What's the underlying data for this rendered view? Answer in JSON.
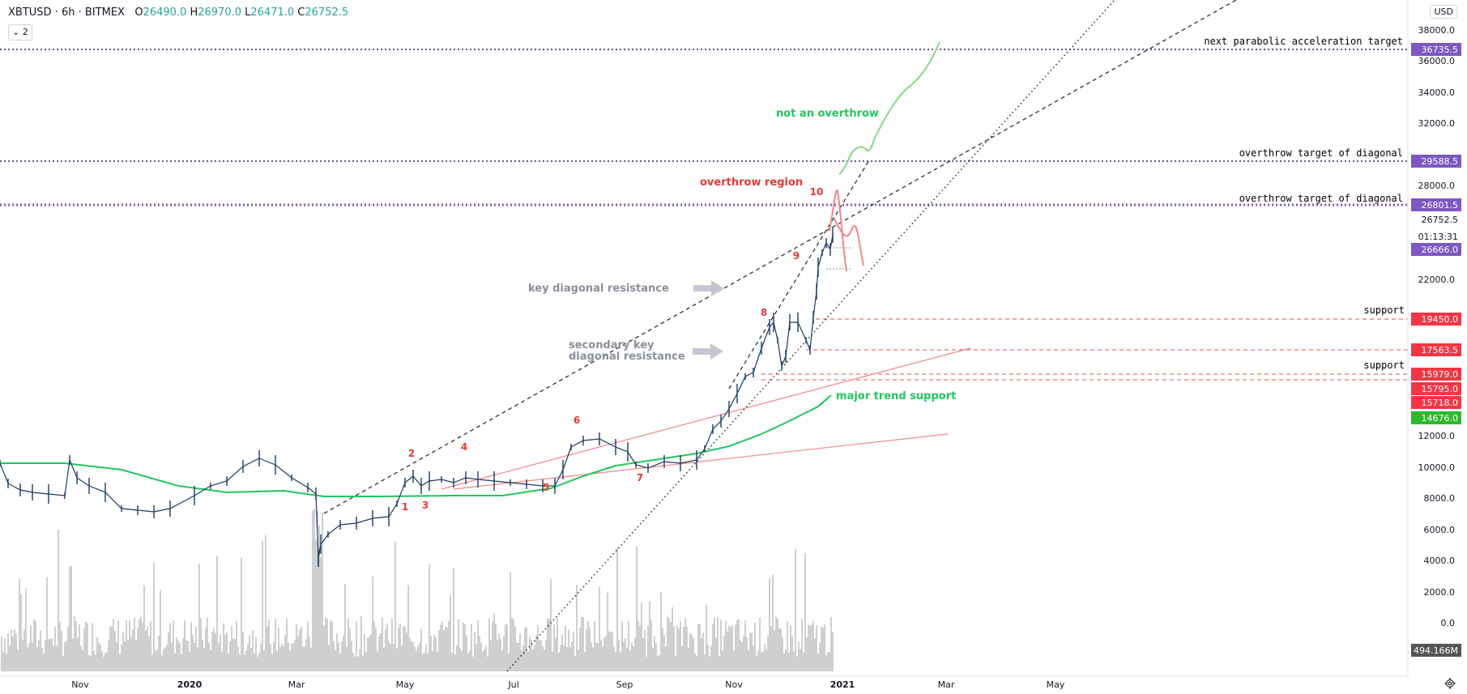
{
  "header": {
    "symbol": "XBTUSD",
    "interval": "6h",
    "exchange": "BITMEX",
    "open_label": "O",
    "open": "26490.0",
    "high_label": "H",
    "high": "26970.0",
    "low_label": "L",
    "low": "26471.0",
    "close_label": "C",
    "close": "26752.5",
    "indicator_toggle": "2"
  },
  "currency_button": "USD",
  "axis": {
    "price_ticks": [
      "38000.0",
      "36000.0",
      "34000.0",
      "32000.0",
      "28000.0",
      "22000.0",
      "12000.0",
      "10000.0",
      "8000.0",
      "6000.0",
      "4000.0",
      "2000.0",
      "0.0"
    ],
    "time_ticks": [
      "Nov",
      "2020",
      "Mar",
      "May",
      "Jul",
      "Sep",
      "Nov",
      "2021",
      "Mar",
      "May"
    ],
    "price_labels": [
      {
        "text": "36735.5",
        "color": "#7e57c2"
      },
      {
        "text": "29588.5",
        "color": "#7e57c2"
      },
      {
        "text": "26801.5",
        "color": "#7e57c2"
      },
      {
        "text": "26752.5",
        "color": "#ffffff"
      },
      {
        "text": "01:13:31",
        "color": "#ffffff"
      },
      {
        "text": "26666.0",
        "color": "#7e57c2"
      },
      {
        "text": "19450.0",
        "color": "#f23645"
      },
      {
        "text": "17563.5",
        "color": "#f23645"
      },
      {
        "text": "15979.0",
        "color": "#f23645"
      },
      {
        "text": "15795.0",
        "color": "#f23645"
      },
      {
        "text": "15718.0",
        "color": "#f23645"
      },
      {
        "text": "14676.0",
        "color": "#26a69a"
      },
      {
        "text": "494.166M",
        "color": "#555555"
      }
    ]
  },
  "annotations": [
    {
      "text": "next parabolic acceleration target",
      "color": "#000000"
    },
    {
      "text": "overthrow target of diagonal",
      "color": "#000000"
    },
    {
      "text": "overthrow target of diagonal",
      "color": "#000000"
    },
    {
      "text": "support",
      "color": "#000000"
    },
    {
      "text": "support",
      "color": "#000000"
    },
    {
      "text": "not an overthrow",
      "color": "#22c55e"
    },
    {
      "text": "overthrow region",
      "color": "#e53935"
    },
    {
      "text": "key diagonal resistance",
      "color": "#8a8f99"
    },
    {
      "text": "secondary key",
      "color": "#8a8f99"
    },
    {
      "text": "diagonal resistance",
      "color": "#8a8f99"
    },
    {
      "text": "major trend support",
      "color": "#22c55e"
    }
  ],
  "wave_labels": [
    "1",
    "2",
    "3",
    "4",
    "5",
    "6",
    "7",
    "8",
    "9",
    "10"
  ],
  "colors": {
    "ma_line": "#22c55e",
    "candles": "#1e3a5f",
    "volume": "#9e9fa3",
    "purple_tag": "#7e57c2",
    "red_tag": "#f23645",
    "green_tag": "#2eb82e"
  }
}
